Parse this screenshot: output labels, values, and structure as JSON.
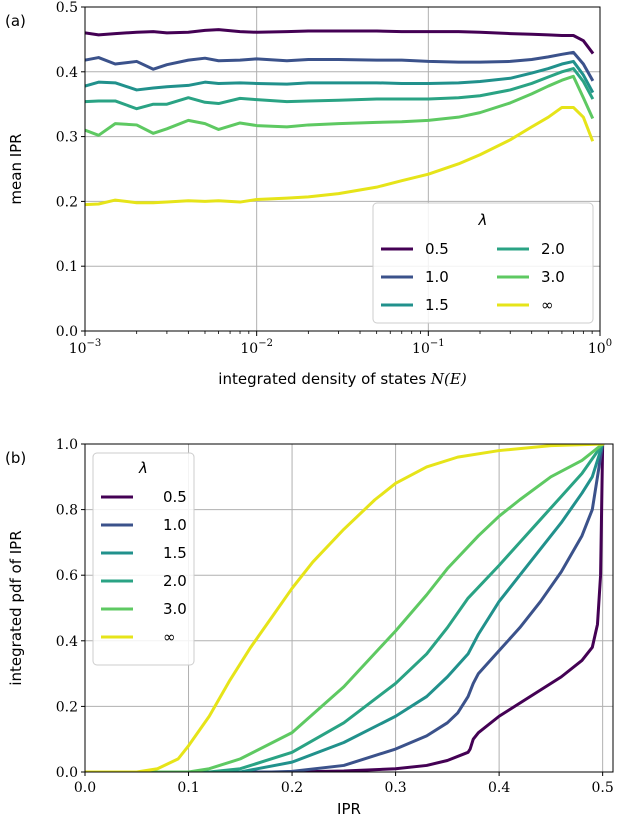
{
  "chart_data": [
    {
      "panel_label": "(a)",
      "type": "line",
      "xscale": "log",
      "xlim": [
        0.001,
        1
      ],
      "ylim": [
        0.0,
        0.5
      ],
      "xlabel_text": "integrated density of states ",
      "xlabel_math": "N(E)",
      "ylabel": "mean IPR",
      "x_ticks": [
        {
          "base": "10",
          "exp": "−3",
          "value": 0.001
        },
        {
          "base": "10",
          "exp": "−2",
          "value": 0.01
        },
        {
          "base": "10",
          "exp": "−1",
          "value": 0.1
        },
        {
          "base": "10",
          "exp": "0",
          "value": 1
        }
      ],
      "y_ticks": [
        "0.0",
        "0.1",
        "0.2",
        "0.3",
        "0.4",
        "0.5"
      ],
      "grid": true,
      "legend": {
        "title": "λ",
        "placement": "lower-right",
        "columns": 2
      },
      "series": [
        {
          "name": "0.5",
          "color": "#440154",
          "x": [
            0.001,
            0.0012,
            0.0015,
            0.002,
            0.0025,
            0.003,
            0.004,
            0.005,
            0.006,
            0.008,
            0.01,
            0.015,
            0.02,
            0.03,
            0.05,
            0.07,
            0.1,
            0.15,
            0.2,
            0.3,
            0.4,
            0.5,
            0.6,
            0.7,
            0.8,
            0.9
          ],
          "y": [
            0.46,
            0.457,
            0.459,
            0.461,
            0.462,
            0.46,
            0.461,
            0.464,
            0.465,
            0.462,
            0.461,
            0.462,
            0.463,
            0.463,
            0.463,
            0.462,
            0.462,
            0.462,
            0.461,
            0.459,
            0.458,
            0.457,
            0.456,
            0.456,
            0.448,
            0.43
          ]
        },
        {
          "name": "1.0",
          "color": "#3b528b",
          "x": [
            0.001,
            0.0012,
            0.0015,
            0.002,
            0.0025,
            0.003,
            0.004,
            0.005,
            0.006,
            0.008,
            0.01,
            0.015,
            0.02,
            0.03,
            0.05,
            0.07,
            0.1,
            0.15,
            0.2,
            0.3,
            0.4,
            0.5,
            0.6,
            0.7,
            0.8,
            0.9
          ],
          "y": [
            0.418,
            0.422,
            0.412,
            0.416,
            0.404,
            0.411,
            0.418,
            0.421,
            0.417,
            0.418,
            0.42,
            0.417,
            0.419,
            0.419,
            0.418,
            0.418,
            0.416,
            0.415,
            0.415,
            0.416,
            0.419,
            0.423,
            0.427,
            0.43,
            0.412,
            0.388
          ]
        },
        {
          "name": "1.5",
          "color": "#21918c",
          "x": [
            0.001,
            0.0012,
            0.0015,
            0.002,
            0.0025,
            0.003,
            0.004,
            0.005,
            0.006,
            0.008,
            0.01,
            0.015,
            0.02,
            0.03,
            0.05,
            0.07,
            0.1,
            0.15,
            0.2,
            0.3,
            0.4,
            0.5,
            0.6,
            0.7,
            0.8,
            0.9
          ],
          "y": [
            0.378,
            0.384,
            0.383,
            0.372,
            0.375,
            0.377,
            0.379,
            0.384,
            0.382,
            0.383,
            0.382,
            0.381,
            0.383,
            0.383,
            0.383,
            0.382,
            0.382,
            0.383,
            0.385,
            0.39,
            0.398,
            0.405,
            0.412,
            0.416,
            0.395,
            0.37
          ]
        },
        {
          "name": "2.0",
          "color": "#2aa384",
          "x": [
            0.001,
            0.0012,
            0.0015,
            0.002,
            0.0025,
            0.003,
            0.004,
            0.005,
            0.006,
            0.008,
            0.01,
            0.015,
            0.02,
            0.03,
            0.05,
            0.07,
            0.1,
            0.15,
            0.2,
            0.3,
            0.4,
            0.5,
            0.6,
            0.7,
            0.8,
            0.9
          ],
          "y": [
            0.354,
            0.355,
            0.355,
            0.343,
            0.35,
            0.35,
            0.36,
            0.353,
            0.351,
            0.359,
            0.357,
            0.354,
            0.355,
            0.356,
            0.358,
            0.358,
            0.358,
            0.36,
            0.363,
            0.372,
            0.382,
            0.392,
            0.4,
            0.405,
            0.385,
            0.36
          ]
        },
        {
          "name": "3.0",
          "color": "#5ec962",
          "x": [
            0.001,
            0.0012,
            0.0015,
            0.002,
            0.0025,
            0.003,
            0.004,
            0.005,
            0.006,
            0.008,
            0.01,
            0.015,
            0.02,
            0.03,
            0.05,
            0.07,
            0.1,
            0.15,
            0.2,
            0.3,
            0.4,
            0.5,
            0.6,
            0.7,
            0.8,
            0.9
          ],
          "y": [
            0.31,
            0.302,
            0.32,
            0.318,
            0.305,
            0.312,
            0.325,
            0.32,
            0.311,
            0.321,
            0.317,
            0.315,
            0.318,
            0.32,
            0.322,
            0.323,
            0.325,
            0.33,
            0.337,
            0.352,
            0.366,
            0.378,
            0.387,
            0.393,
            0.36,
            0.33
          ]
        },
        {
          "name": "∞",
          "color": "#e6e419",
          "x": [
            0.001,
            0.0012,
            0.0015,
            0.002,
            0.0025,
            0.003,
            0.004,
            0.005,
            0.006,
            0.008,
            0.01,
            0.015,
            0.02,
            0.03,
            0.05,
            0.07,
            0.1,
            0.15,
            0.2,
            0.3,
            0.4,
            0.5,
            0.6,
            0.7,
            0.8,
            0.9
          ],
          "y": [
            0.195,
            0.196,
            0.202,
            0.198,
            0.198,
            0.199,
            0.201,
            0.2,
            0.201,
            0.199,
            0.203,
            0.205,
            0.207,
            0.212,
            0.222,
            0.232,
            0.242,
            0.258,
            0.272,
            0.295,
            0.315,
            0.33,
            0.345,
            0.345,
            0.33,
            0.295
          ]
        }
      ]
    },
    {
      "panel_label": "(b)",
      "type": "line",
      "xlim": [
        0.0,
        0.51
      ],
      "ylim": [
        0.0,
        1.0
      ],
      "xlabel": "IPR",
      "ylabel": "integrated pdf of IPR",
      "x_ticks": [
        "0.0",
        "0.1",
        "0.2",
        "0.3",
        "0.4",
        "0.5"
      ],
      "y_ticks": [
        "0.0",
        "0.2",
        "0.4",
        "0.6",
        "0.8",
        "1.0"
      ],
      "grid": true,
      "legend": {
        "title": "λ",
        "placement": "upper-left",
        "columns": 1
      },
      "series": [
        {
          "name": "0.5",
          "color": "#440154",
          "x": [
            0,
            0.2,
            0.25,
            0.3,
            0.33,
            0.35,
            0.37,
            0.372,
            0.375,
            0.38,
            0.4,
            0.42,
            0.44,
            0.46,
            0.48,
            0.49,
            0.495,
            0.498,
            0.5
          ],
          "y": [
            0,
            0,
            0.003,
            0.01,
            0.02,
            0.035,
            0.06,
            0.07,
            0.1,
            0.12,
            0.17,
            0.21,
            0.25,
            0.29,
            0.34,
            0.38,
            0.45,
            0.6,
            1.0
          ]
        },
        {
          "name": "1.0",
          "color": "#3b528b",
          "x": [
            0,
            0.18,
            0.2,
            0.25,
            0.3,
            0.33,
            0.35,
            0.36,
            0.37,
            0.375,
            0.38,
            0.4,
            0.42,
            0.44,
            0.46,
            0.48,
            0.49,
            0.5
          ],
          "y": [
            0,
            0,
            0.002,
            0.02,
            0.07,
            0.11,
            0.15,
            0.18,
            0.23,
            0.27,
            0.3,
            0.37,
            0.44,
            0.52,
            0.61,
            0.72,
            0.8,
            1.0
          ]
        },
        {
          "name": "1.5",
          "color": "#21918c",
          "x": [
            0,
            0.15,
            0.2,
            0.25,
            0.3,
            0.33,
            0.35,
            0.37,
            0.38,
            0.4,
            0.42,
            0.44,
            0.46,
            0.48,
            0.49,
            0.5
          ],
          "y": [
            0,
            0,
            0.03,
            0.09,
            0.17,
            0.23,
            0.29,
            0.36,
            0.42,
            0.52,
            0.6,
            0.68,
            0.76,
            0.85,
            0.9,
            1.0
          ]
        },
        {
          "name": "2.0",
          "color": "#2aa384",
          "x": [
            0,
            0.12,
            0.15,
            0.2,
            0.25,
            0.3,
            0.33,
            0.35,
            0.37,
            0.4,
            0.42,
            0.44,
            0.46,
            0.48,
            0.5
          ],
          "y": [
            0,
            0,
            0.01,
            0.06,
            0.15,
            0.27,
            0.36,
            0.44,
            0.53,
            0.63,
            0.7,
            0.77,
            0.84,
            0.91,
            1.0
          ]
        },
        {
          "name": "3.0",
          "color": "#5ec962",
          "x": [
            0,
            0.1,
            0.12,
            0.15,
            0.2,
            0.25,
            0.3,
            0.33,
            0.35,
            0.38,
            0.4,
            0.42,
            0.45,
            0.48,
            0.5
          ],
          "y": [
            0,
            0,
            0.01,
            0.04,
            0.12,
            0.26,
            0.43,
            0.54,
            0.62,
            0.72,
            0.78,
            0.83,
            0.9,
            0.95,
            1.0
          ]
        },
        {
          "name": "∞",
          "color": "#e6e419",
          "x": [
            0,
            0.05,
            0.07,
            0.09,
            0.1,
            0.12,
            0.14,
            0.16,
            0.18,
            0.2,
            0.22,
            0.25,
            0.28,
            0.3,
            0.33,
            0.36,
            0.4,
            0.45,
            0.5
          ],
          "y": [
            0,
            0,
            0.01,
            0.04,
            0.08,
            0.17,
            0.28,
            0.38,
            0.47,
            0.56,
            0.64,
            0.74,
            0.83,
            0.88,
            0.93,
            0.96,
            0.98,
            0.995,
            1.0
          ]
        }
      ]
    }
  ]
}
